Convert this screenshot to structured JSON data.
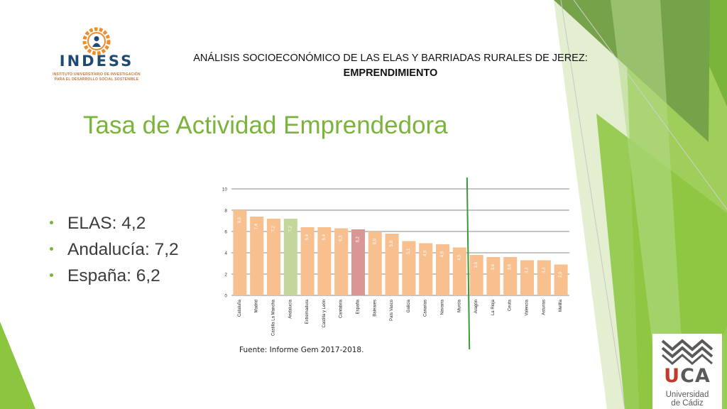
{
  "logo": {
    "name": "INDESS",
    "subtitle_line1": "INSTITUTO UNIVERSITARIO DE INVESTIGACIÓN",
    "subtitle_line2": "PARA EL DESARROLLO SOCIAL SOSTENIBLE"
  },
  "header": {
    "line1": "ANÁLISIS SOCIOECONÓMICO DE LAS ELAS Y BARRIADAS RURALES DE JEREZ:",
    "line2": "EMPRENDIMIENTO"
  },
  "slide_title": "Tasa de Actividad Emprendedora",
  "bullets": [
    "ELAS: 4,2",
    "Andalucía: 7,2",
    "España: 6,2"
  ],
  "source": "Fuente: Informe Gem 2017-2018.",
  "uca_logo": {
    "letter_u": "U",
    "letters_ca": "CA",
    "line1": "Universidad",
    "line2": "de Cádiz"
  },
  "colors": {
    "accent_green": "#7ab43a",
    "bar_default": "#f8bf8f",
    "bar_andalucia": "#c3d69b",
    "bar_espana": "#d99695",
    "reference_line": "#3a9a3a"
  },
  "chart_data": {
    "type": "bar",
    "categories": [
      "Cataluña",
      "Madrid",
      "Castilla La Mancha",
      "Andalucía",
      "Extremadura",
      "Castilla y León",
      "Cantabria",
      "España",
      "Baleares",
      "País Vasco",
      "Galicia",
      "Canarias",
      "Navarra",
      "Murcia",
      "Aragón",
      "La Rioja",
      "Ceuta",
      "Valencia",
      "Asturias",
      "Melilla"
    ],
    "values": [
      8.0,
      7.4,
      7.2,
      7.2,
      6.4,
      6.4,
      6.3,
      6.2,
      6.0,
      5.8,
      5.1,
      4.9,
      4.8,
      4.5,
      3.8,
      3.6,
      3.6,
      3.3,
      3.3,
      2.9
    ],
    "value_labels": [
      "8,0",
      "7,4",
      "7,2",
      "7,2",
      "6,4",
      "6,4",
      "6,3",
      "6,2",
      "6,0",
      "5,8",
      "5,1",
      "4,9",
      "4,8",
      "4,5",
      "3,8",
      "3,6",
      "3,6",
      "3,3",
      "3,3",
      "2,9"
    ],
    "highlight": {
      "Andalucía": "#c3d69b",
      "España": "#d99695"
    },
    "yticks": [
      0,
      2,
      4,
      6,
      8,
      10
    ],
    "ylim": [
      0,
      10
    ],
    "grid": true,
    "reference_line_after": "Murcia",
    "title": "",
    "xlabel": "",
    "ylabel": ""
  }
}
